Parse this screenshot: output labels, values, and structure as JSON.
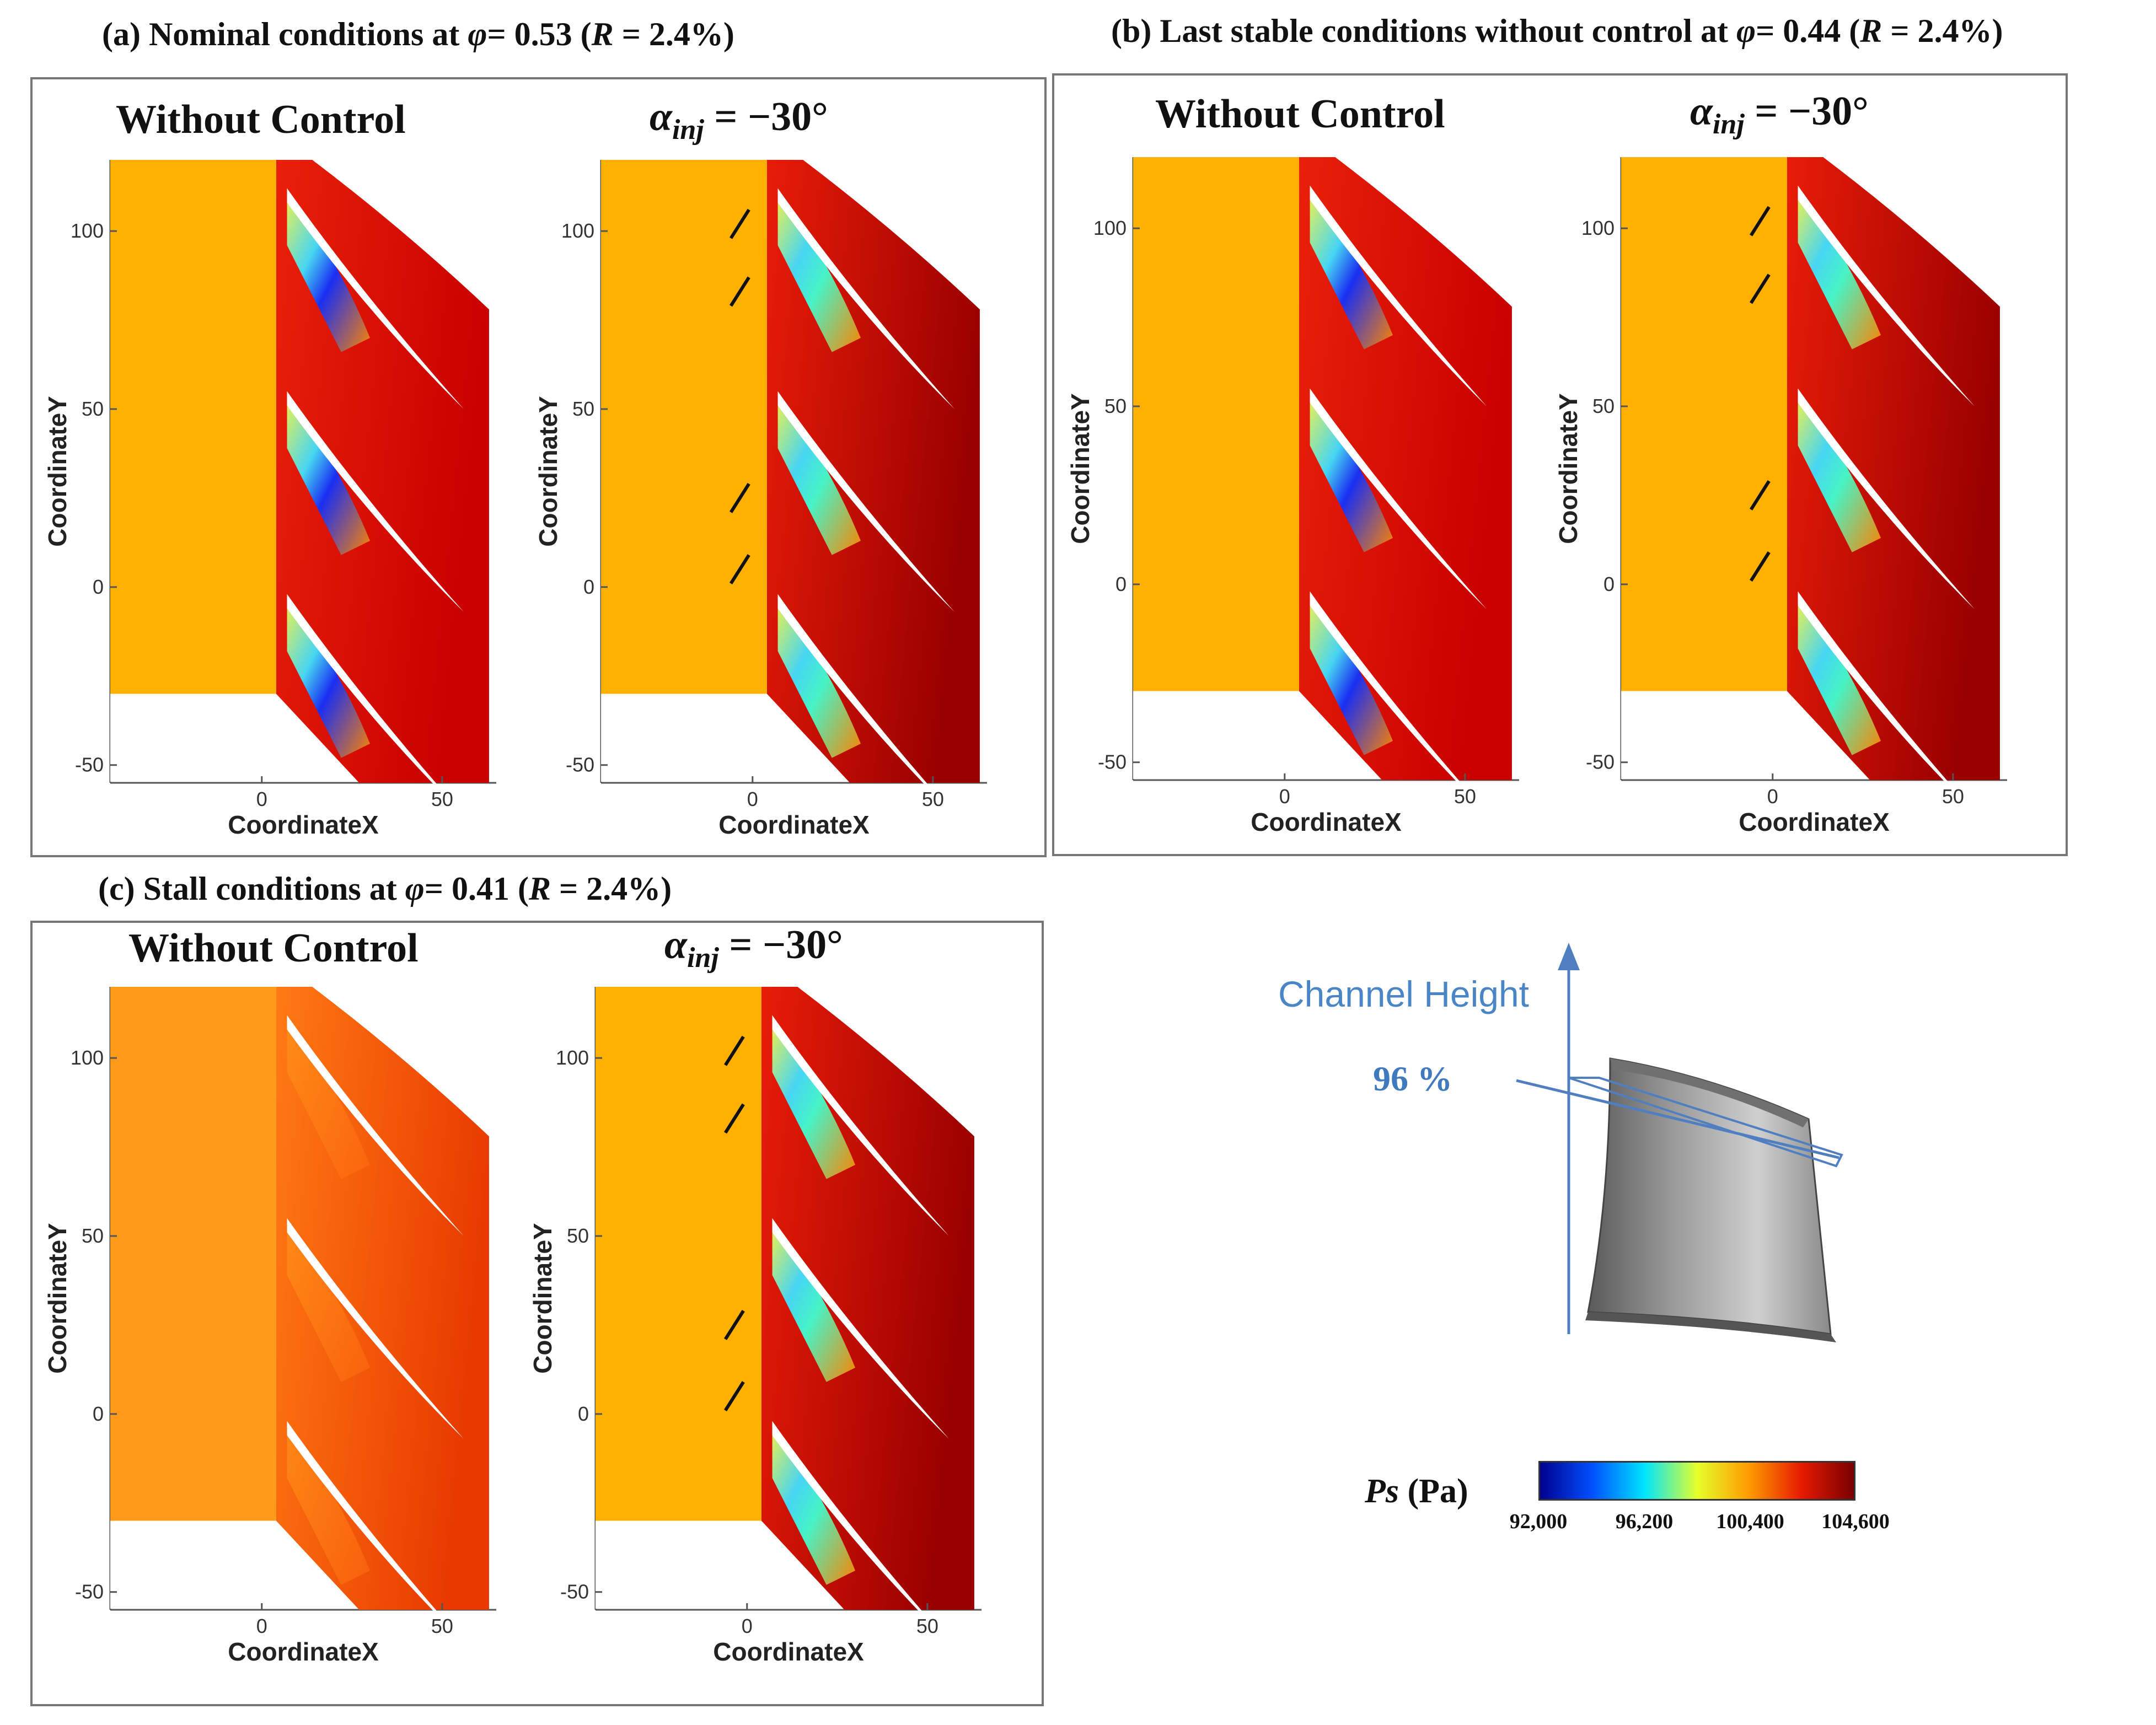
{
  "figure": {
    "panels": [
      {
        "caption_prefix": "(a) Nominal conditions at ",
        "phi_symbol": "φ",
        "phi_text": "= 0.53 (",
        "r_symbol": "R",
        "r_text": " = 2.4%)",
        "left_title": "Without Control",
        "right_title_symbol": "α",
        "right_title_sub": "inj",
        "right_title_value": " = −30°"
      },
      {
        "caption_prefix": "(b) Last stable conditions without control at ",
        "phi_symbol": "φ",
        "phi_text": "= 0.44 (",
        "r_symbol": "R",
        "r_text": " = 2.4%)",
        "left_title": "Without Control",
        "right_title_symbol": "α",
        "right_title_sub": "inj",
        "right_title_value": " = −30°"
      },
      {
        "caption_prefix": "(c) Stall conditions at ",
        "phi_symbol": "φ",
        "phi_text": "= 0.41 (",
        "r_symbol": "R",
        "r_text": " = 2.4%)",
        "left_title": "Without Control",
        "right_title_symbol": "α",
        "right_title_sub": "inj",
        "right_title_value": " = −30°"
      }
    ],
    "axes": {
      "x_label": "CoordinateX",
      "y_label": "CoordinateY",
      "x_ticks": [
        "0",
        "50"
      ],
      "y_ticks": [
        "100",
        "50",
        "0",
        "-50"
      ]
    },
    "inset": {
      "axis_label": "Channel Height",
      "marker_label": "96 %"
    },
    "colorbar": {
      "symbol": "Ps",
      "unit": " (Pa)",
      "ticks": [
        "92,000",
        "96,200",
        "100,400",
        "104,600"
      ],
      "colors": [
        "#00008f",
        "#0050ff",
        "#00e5ff",
        "#e6ff2a",
        "#ff9a00",
        "#e61a00",
        "#7a0000"
      ]
    },
    "chart_data": [
      {
        "type": "heatmap",
        "title": "(a) Nominal conditions at φ= 0.53 (R = 2.4%) — Without Control / α_inj = −30°",
        "xlabel": "CoordinateX",
        "ylabel": "CoordinateY",
        "xlim": [
          -42,
          65
        ],
        "ylim": [
          -55,
          120
        ],
        "colorbar": {
          "label": "Ps (Pa)",
          "min": 92000,
          "max": 104600
        }
      },
      {
        "type": "heatmap",
        "title": "(b) Last stable conditions without control at φ= 0.44 (R = 2.4%) — Without Control / α_inj = −30°",
        "xlabel": "CoordinateX",
        "ylabel": "CoordinateY",
        "xlim": [
          -42,
          65
        ],
        "ylim": [
          -55,
          120
        ],
        "colorbar": {
          "label": "Ps (Pa)",
          "min": 92000,
          "max": 104600
        }
      },
      {
        "type": "heatmap",
        "title": "(c) Stall conditions at φ= 0.41 (R = 2.4%) — Without Control / α_inj = −30°",
        "xlabel": "CoordinateX",
        "ylabel": "CoordinateY",
        "xlim": [
          -42,
          65
        ],
        "ylim": [
          -55,
          120
        ],
        "colorbar": {
          "label": "Ps (Pa)",
          "min": 92000,
          "max": 104600
        }
      }
    ]
  }
}
